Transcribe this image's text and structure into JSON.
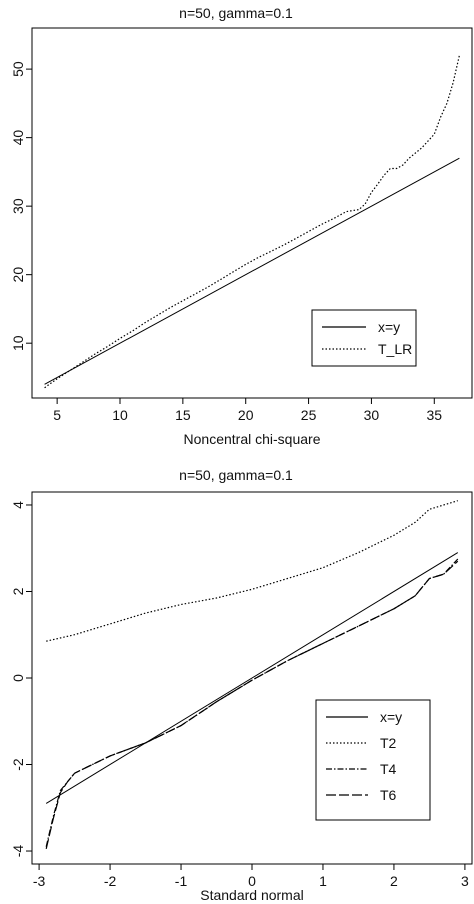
{
  "chart_data": [
    {
      "type": "line",
      "title": "n=50, gamma=0.1",
      "xlabel": "Noncentral chi-square",
      "ylabel": "",
      "xlim": [
        3,
        38
      ],
      "ylim": [
        2,
        56
      ],
      "xticks": [
        5,
        10,
        15,
        20,
        25,
        30,
        35
      ],
      "yticks": [
        10,
        20,
        30,
        40,
        50
      ],
      "legend_position": "bottom-right",
      "series": [
        {
          "name": "x=y",
          "style": "solid",
          "x": [
            4,
            37
          ],
          "y": [
            4,
            37
          ]
        },
        {
          "name": "T_LR",
          "style": "dotted",
          "x": [
            4,
            5,
            6,
            7,
            8,
            9,
            10,
            11,
            12,
            13,
            14,
            15,
            16,
            17,
            18,
            19,
            20,
            21,
            22,
            23,
            24,
            25,
            26,
            27,
            28,
            29,
            29.5,
            30,
            30.5,
            31,
            31.5,
            32,
            32.5,
            33,
            34,
            35,
            35.5,
            36,
            36.5,
            37
          ],
          "y": [
            3.5,
            4.8,
            6.0,
            7.2,
            8.4,
            9.5,
            10.7,
            11.8,
            13.0,
            14.1,
            15.2,
            16.2,
            17.2,
            18.2,
            19.3,
            20.4,
            21.5,
            22.5,
            23.4,
            24.3,
            25.3,
            26.3,
            27.3,
            28.2,
            29.2,
            29.5,
            30.3,
            32.0,
            33.2,
            34.5,
            35.5,
            35.5,
            36.0,
            37.0,
            38.5,
            40.5,
            43.0,
            45.0,
            48.0,
            52.0
          ]
        }
      ]
    },
    {
      "type": "line",
      "title": "n=50, gamma=0.1",
      "xlabel": "Standard normal",
      "ylabel": "",
      "xlim": [
        -3.1,
        3.1
      ],
      "ylim": [
        -4.3,
        4.3
      ],
      "xticks": [
        -3,
        -2,
        -1,
        0,
        1,
        2,
        3
      ],
      "yticks": [
        -4,
        -2,
        0,
        2,
        4
      ],
      "legend_position": "bottom-right",
      "series": [
        {
          "name": "x=y",
          "style": "solid",
          "x": [
            -2.9,
            2.9
          ],
          "y": [
            -2.9,
            2.9
          ]
        },
        {
          "name": "T2",
          "style": "dotted",
          "x": [
            -2.9,
            -2.5,
            -2.0,
            -1.5,
            -1.0,
            -0.5,
            0,
            0.5,
            1.0,
            1.5,
            2.0,
            2.3,
            2.5,
            2.7,
            2.9
          ],
          "y": [
            0.85,
            1.0,
            1.25,
            1.5,
            1.7,
            1.85,
            2.05,
            2.3,
            2.55,
            2.9,
            3.3,
            3.6,
            3.9,
            4.0,
            4.1
          ]
        },
        {
          "name": "T4",
          "style": "dashdot",
          "x": [
            -2.9,
            -2.8,
            -2.7,
            -2.6,
            -2.5,
            -2.0,
            -1.5,
            -1.0,
            -0.5,
            0,
            0.5,
            1.0,
            1.5,
            2.0,
            2.3,
            2.5,
            2.7,
            2.9
          ],
          "y": [
            -3.9,
            -3.2,
            -2.6,
            -2.4,
            -2.2,
            -1.8,
            -1.5,
            -1.1,
            -0.55,
            -0.05,
            0.4,
            0.8,
            1.2,
            1.6,
            1.9,
            2.3,
            2.4,
            2.75
          ]
        },
        {
          "name": "T6",
          "style": "longdash",
          "x": [
            -2.9,
            -2.8,
            -2.7,
            -2.6,
            -2.5,
            -2.0,
            -1.5,
            -1.0,
            -0.5,
            0,
            0.5,
            1.0,
            1.5,
            2.0,
            2.3,
            2.5,
            2.7,
            2.9
          ],
          "y": [
            -3.95,
            -3.25,
            -2.65,
            -2.4,
            -2.2,
            -1.8,
            -1.5,
            -1.1,
            -0.55,
            -0.05,
            0.4,
            0.8,
            1.2,
            1.6,
            1.9,
            2.3,
            2.4,
            2.7
          ]
        }
      ]
    }
  ]
}
